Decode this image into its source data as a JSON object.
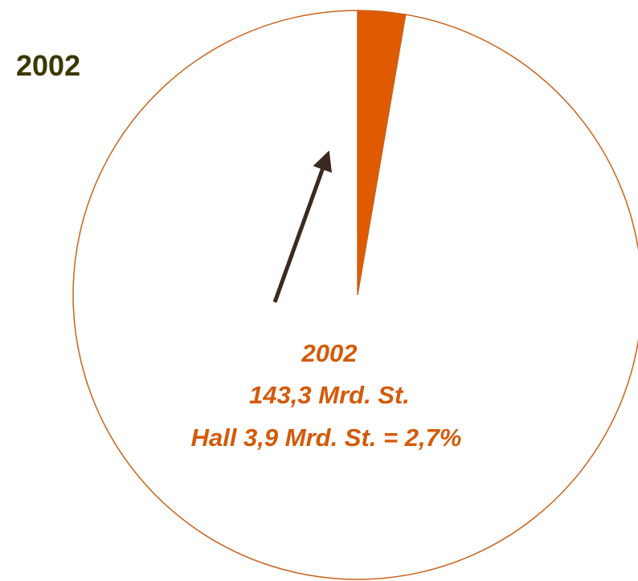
{
  "chart_data": {
    "type": "pie",
    "title": "2002",
    "categories": [
      null,
      null
    ],
    "values": [
      2.7,
      97.3
    ],
    "colors": [
      "#df5a00",
      "#ffffff"
    ],
    "edge_color": "#c8641e",
    "annotations": [
      "2002",
      "143,3 Mrd. St.",
      "Hall 3,9 Mrd. St. = 2,7%"
    ]
  }
}
